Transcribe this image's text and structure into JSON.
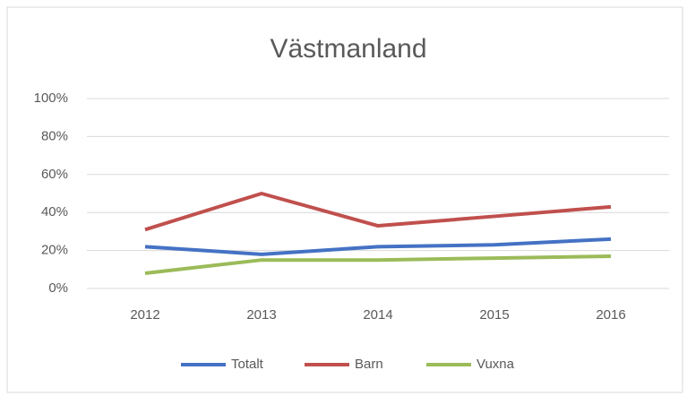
{
  "chart_data": {
    "type": "line",
    "title": "Västmanland",
    "categories": [
      "2012",
      "2013",
      "2014",
      "2015",
      "2016"
    ],
    "series": [
      {
        "name": "Totalt",
        "color": "#4472c4",
        "values": [
          22,
          18,
          22,
          23,
          26
        ]
      },
      {
        "name": "Barn",
        "color": "#c0504d",
        "values": [
          31,
          50,
          33,
          38,
          43
        ]
      },
      {
        "name": "Vuxna",
        "color": "#9bbb59",
        "values": [
          8,
          15,
          15,
          16,
          17
        ]
      }
    ],
    "ylim": [
      0,
      100
    ],
    "yticks": [
      {
        "value": 0,
        "label": "0%"
      },
      {
        "value": 20,
        "label": "20%"
      },
      {
        "value": 40,
        "label": "40%"
      },
      {
        "value": 60,
        "label": "60%"
      },
      {
        "value": 80,
        "label": "80%"
      },
      {
        "value": 100,
        "label": "100%"
      }
    ],
    "grid": true,
    "legend": "bottom"
  }
}
